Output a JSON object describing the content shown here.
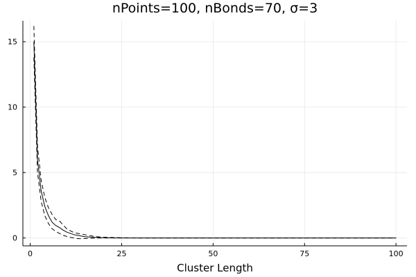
{
  "chart_data": {
    "type": "line",
    "title": "nPoints=100, nBonds=70, σ=3",
    "xlabel": "Cluster Length",
    "ylabel": "",
    "xlim": [
      -2,
      103
    ],
    "ylim": [
      -0.6,
      16.6
    ],
    "xticks": [
      0,
      25,
      50,
      75,
      100
    ],
    "yticks": [
      0,
      5,
      10,
      15
    ],
    "grid": true,
    "legend": "none",
    "series": [
      {
        "style": "solid",
        "color": "#000000",
        "x": [
          1,
          2,
          3,
          4,
          5,
          6,
          7,
          8,
          9,
          10,
          11,
          12,
          13,
          14,
          15,
          16,
          17,
          18,
          19,
          20,
          22,
          25,
          30,
          40,
          50,
          60,
          70,
          80,
          90,
          100
        ],
        "y": [
          15.0,
          6.0,
          3.6,
          2.4,
          1.7,
          1.2,
          0.95,
          0.8,
          0.6,
          0.45,
          0.35,
          0.25,
          0.2,
          0.15,
          0.1,
          0.08,
          0.06,
          0.04,
          0.03,
          0.02,
          0.01,
          0,
          0,
          0,
          0,
          0,
          0,
          0,
          0,
          0
        ]
      },
      {
        "style": "dashed",
        "color": "#000000",
        "x": [
          1,
          2,
          3,
          4,
          5,
          6,
          7,
          8,
          9,
          10,
          11,
          12,
          13,
          14,
          15,
          16,
          17,
          18,
          19,
          20,
          22,
          25,
          30,
          40,
          50,
          60,
          70,
          80,
          90,
          100
        ],
        "y": [
          16.2,
          7.0,
          4.4,
          3.1,
          2.3,
          1.8,
          1.4,
          1.3,
          1.0,
          0.7,
          0.55,
          0.4,
          0.35,
          0.3,
          0.25,
          0.2,
          0.15,
          0.1,
          0.08,
          0.06,
          0.04,
          0.02,
          0,
          0,
          0,
          0,
          0,
          0,
          0,
          0
        ]
      },
      {
        "style": "dashed",
        "color": "#000000",
        "x": [
          1,
          2,
          3,
          4,
          5,
          6,
          7,
          8,
          9,
          10,
          11,
          12,
          13,
          14,
          15,
          16,
          17,
          18,
          19,
          20,
          22,
          25,
          30,
          40,
          50,
          60,
          70,
          80,
          90,
          100
        ],
        "y": [
          13.8,
          5.0,
          2.8,
          1.7,
          1.1,
          0.7,
          0.5,
          0.35,
          0.2,
          0.12,
          0.05,
          0,
          -0.05,
          -0.05,
          -0.04,
          -0.03,
          -0.02,
          -0.01,
          0,
          0,
          0,
          0,
          0,
          0,
          0,
          0,
          0,
          0,
          0,
          0
        ]
      }
    ]
  }
}
